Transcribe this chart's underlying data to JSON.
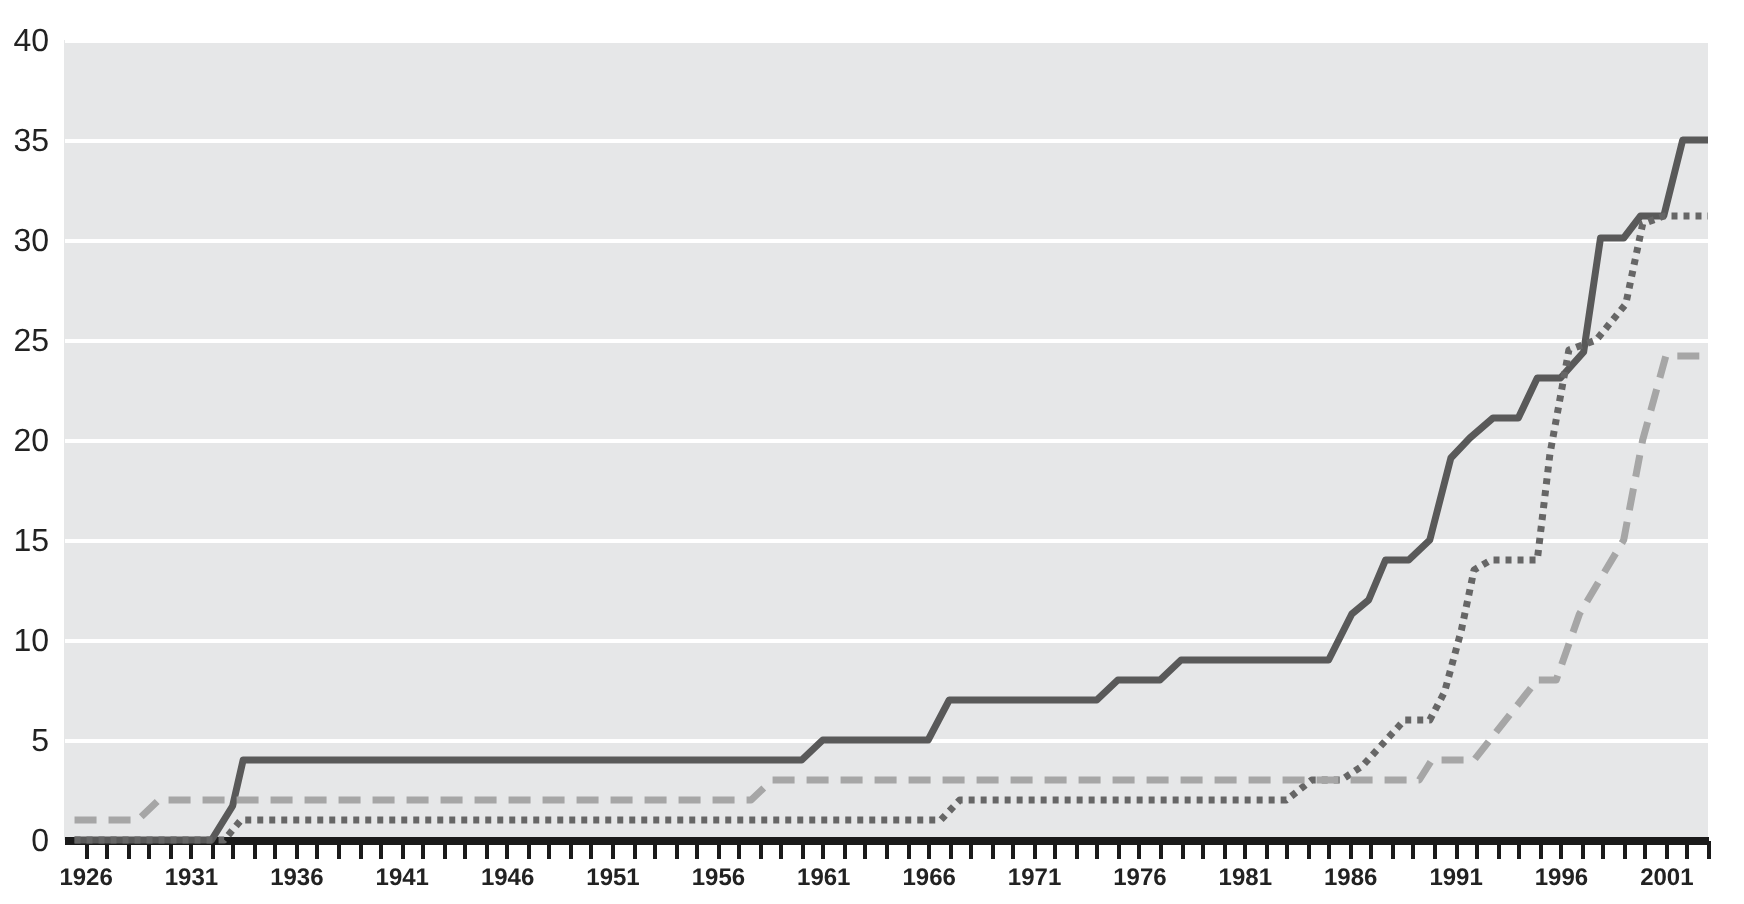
{
  "chart_data": {
    "type": "line",
    "xlim": [
      1925,
      2003
    ],
    "ylim": [
      0,
      40
    ],
    "yticks": [
      0,
      5,
      10,
      15,
      20,
      25,
      30,
      35,
      40
    ],
    "xticks": [
      1926,
      {
        "value": 1927,
        "label": null
      },
      {
        "value": 1928,
        "label": null
      },
      {
        "value": 1929,
        "label": null
      },
      {
        "value": 1930,
        "label": null
      },
      1931,
      {
        "value": 1932,
        "label": null
      },
      {
        "value": 1933,
        "label": null
      },
      {
        "value": 1934,
        "label": null
      },
      {
        "value": 1935,
        "label": null
      },
      1936,
      {
        "value": 1937,
        "label": null
      },
      {
        "value": 1938,
        "label": null
      },
      {
        "value": 1939,
        "label": null
      },
      {
        "value": 1940,
        "label": null
      },
      1941,
      {
        "value": 1942,
        "label": null
      },
      {
        "value": 1943,
        "label": null
      },
      {
        "value": 1944,
        "label": null
      },
      {
        "value": 1945,
        "label": null
      },
      1946,
      {
        "value": 1947,
        "label": null
      },
      {
        "value": 1948,
        "label": null
      },
      {
        "value": 1949,
        "label": null
      },
      {
        "value": 1950,
        "label": null
      },
      1951,
      {
        "value": 1952,
        "label": null
      },
      {
        "value": 1953,
        "label": null
      },
      {
        "value": 1954,
        "label": null
      },
      {
        "value": 1955,
        "label": null
      },
      1956,
      {
        "value": 1957,
        "label": null
      },
      {
        "value": 1958,
        "label": null
      },
      {
        "value": 1959,
        "label": null
      },
      {
        "value": 1960,
        "label": null
      },
      1961,
      {
        "value": 1962,
        "label": null
      },
      {
        "value": 1963,
        "label": null
      },
      {
        "value": 1964,
        "label": null
      },
      {
        "value": 1965,
        "label": null
      },
      1966,
      {
        "value": 1967,
        "label": null
      },
      {
        "value": 1968,
        "label": null
      },
      {
        "value": 1969,
        "label": null
      },
      {
        "value": 1970,
        "label": null
      },
      1971,
      {
        "value": 1972,
        "label": null
      },
      {
        "value": 1973,
        "label": null
      },
      {
        "value": 1974,
        "label": null
      },
      {
        "value": 1975,
        "label": null
      },
      1976,
      {
        "value": 1977,
        "label": null
      },
      {
        "value": 1978,
        "label": null
      },
      {
        "value": 1979,
        "label": null
      },
      {
        "value": 1980,
        "label": null
      },
      1981,
      {
        "value": 1982,
        "label": null
      },
      {
        "value": 1983,
        "label": null
      },
      {
        "value": 1984,
        "label": null
      },
      {
        "value": 1985,
        "label": null
      },
      1986,
      {
        "value": 1987,
        "label": null
      },
      {
        "value": 1988,
        "label": null
      },
      {
        "value": 1989,
        "label": null
      },
      {
        "value": 1990,
        "label": null
      },
      1991,
      {
        "value": 1992,
        "label": null
      },
      {
        "value": 1993,
        "label": null
      },
      {
        "value": 1994,
        "label": null
      },
      {
        "value": 1995,
        "label": null
      },
      1996,
      {
        "value": 1997,
        "label": null
      },
      {
        "value": 1998,
        "label": null
      },
      {
        "value": 1999,
        "label": null
      },
      {
        "value": 2000,
        "label": null
      },
      2001,
      {
        "value": 2002,
        "label": null
      },
      {
        "value": 2003,
        "label": null
      }
    ],
    "grid": "y",
    "series": [
      {
        "color": "#595959",
        "line_style": "solid",
        "x": [
          1925.5,
          1932,
          1933,
          1933.5,
          1960,
          1961,
          1966,
          1967,
          1974,
          1975,
          1977,
          1978,
          1985,
          1986.1,
          1986.9,
          1987.7,
          1988.8,
          1989.8,
          1990.8,
          1991.7,
          1992.8,
          1994,
          1994.9,
          1996,
          1997.1,
          1997.9,
          1999,
          1999.8,
          2000.9,
          2001.8,
          2003
        ],
        "values": [
          0,
          0,
          1.7,
          4,
          4,
          5,
          5,
          7,
          7,
          8,
          8,
          9,
          9,
          11.3,
          12,
          14,
          14,
          15,
          19.1,
          20.1,
          21.1,
          21.1,
          23.1,
          23.1,
          24.4,
          30.1,
          30.1,
          31.2,
          31.2,
          35,
          35
        ]
      },
      {
        "color": "#666666",
        "line_style": "dotted",
        "x": [
          1925.5,
          1932.6,
          1933.4,
          1966.6,
          1967.5,
          1983,
          1984.2,
          1985.6,
          1986.6,
          1988.6,
          1989.8,
          1990.5,
          1991.3,
          1991.9,
          1992.7,
          1994.9,
          1995.5,
          1996.4,
          1997.7,
          1999.1,
          1999.9,
          2000.9,
          2003
        ],
        "values": [
          0,
          0,
          1,
          1,
          2,
          2,
          3,
          3,
          3.7,
          6,
          6,
          7.4,
          10.5,
          13.5,
          14,
          14,
          19.3,
          24.5,
          25,
          26.8,
          30.8,
          31.2,
          31.2
        ]
      },
      {
        "color": "#a6a6a6",
        "line_style": "dashed",
        "x": [
          1925.5,
          1928.5,
          1929.5,
          1957.6,
          1958.6,
          1989.3,
          1989.9,
          1991.9,
          1994.9,
          1995.8,
          1996.9,
          1999,
          1999.9,
          2001,
          2003
        ],
        "values": [
          1,
          1,
          2,
          2,
          3,
          3,
          4,
          4,
          8,
          8,
          11.3,
          15,
          20,
          24.2,
          24.2
        ]
      }
    ]
  }
}
